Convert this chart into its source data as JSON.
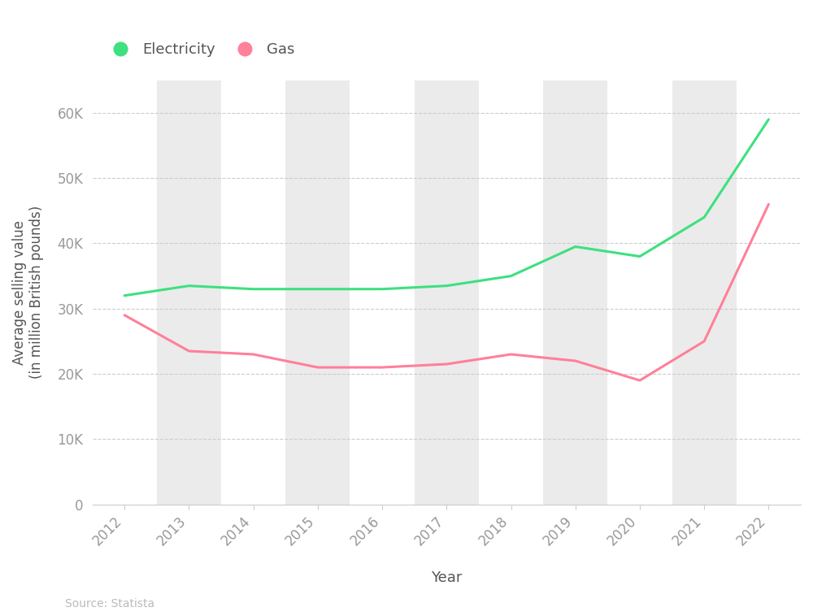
{
  "years": [
    2012,
    2013,
    2014,
    2015,
    2016,
    2017,
    2018,
    2019,
    2020,
    2021,
    2022
  ],
  "electricity": [
    32000,
    33500,
    33000,
    33000,
    33000,
    33500,
    35000,
    39500,
    38000,
    44000,
    59000
  ],
  "gas": [
    29000,
    23500,
    23000,
    21000,
    21000,
    21500,
    23000,
    22000,
    19000,
    25000,
    46000
  ],
  "electricity_color": "#3EE07F",
  "gas_color": "#FF8099",
  "background_color": "#FFFFFF",
  "stripe_color": "#EBEBEB",
  "grid_color": "#CCCCCC",
  "ylabel": "Average selling value\n(in million British pounds)",
  "xlabel": "Year",
  "source": "Source: Statista",
  "legend_electricity": "Electricity",
  "legend_gas": "Gas",
  "ylim": [
    0,
    65000
  ],
  "yticks": [
    0,
    10000,
    20000,
    30000,
    40000,
    50000,
    60000
  ],
  "ytick_labels": [
    "0",
    "10K",
    "20K",
    "30K",
    "40K",
    "50K",
    "60K"
  ],
  "line_width": 2.2,
  "xlim_left": 2011.5,
  "xlim_right": 2022.5,
  "stripe_years": [
    2013,
    2015,
    2017,
    2019,
    2021
  ]
}
